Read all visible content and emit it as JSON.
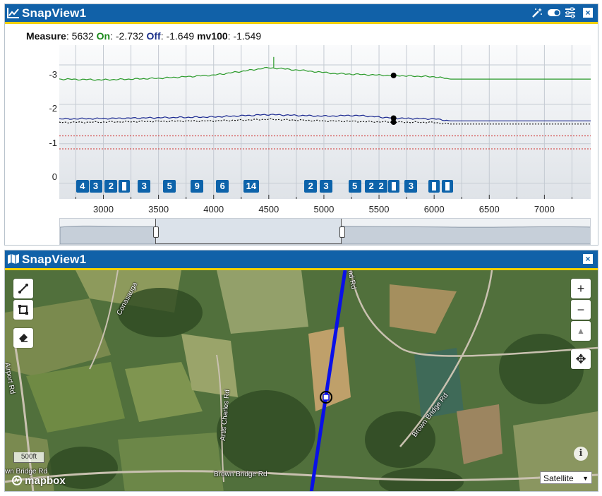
{
  "top_panel": {
    "title": "SnapView1",
    "measure": {
      "measure_label": "Measure",
      "measure_value": "5632",
      "on_label": "On",
      "on_value": "-2.732",
      "off_label": "Off",
      "off_value": "-1.649",
      "mv_label": "mv100",
      "mv_value": "-1.549"
    },
    "icons": [
      "magic-wand-icon",
      "toggle-icon",
      "sliders-icon",
      "close-icon"
    ],
    "close_glyph": "×"
  },
  "chart_data": {
    "type": "line",
    "xlabel": "",
    "ylabel": "",
    "x_ticks": [
      "3000",
      "3500",
      "4000",
      "4500",
      "5000",
      "5500",
      "6000",
      "6500",
      "7000"
    ],
    "y_ticks": [
      "-3",
      "-2",
      "-1",
      "0"
    ],
    "xlim": [
      2600,
      7420
    ],
    "ylim": [
      0.4,
      -3.5
    ],
    "series": [
      {
        "color": "#2a9a2a",
        "x": [
          2600,
          3000,
          3500,
          4000,
          4500,
          4800,
          5100,
          5500,
          5632,
          6000,
          6150,
          7420
        ],
        "values": [
          -2.64,
          -2.62,
          -2.66,
          -2.74,
          -2.93,
          -2.86,
          -2.78,
          -2.74,
          -2.73,
          -2.7,
          -2.64,
          -2.64
        ]
      },
      {
        "color": "#1a2890",
        "x": [
          2600,
          3000,
          3500,
          4000,
          4500,
          5000,
          5300,
          5632,
          6000,
          6150,
          7420
        ],
        "values": [
          -1.63,
          -1.64,
          -1.66,
          -1.68,
          -1.74,
          -1.7,
          -1.72,
          -1.65,
          -1.63,
          -1.58,
          -1.58
        ]
      },
      {
        "color": "#111111",
        "dash": "2,2",
        "x": [
          2600,
          3000,
          3500,
          4000,
          4500,
          5000,
          5632,
          6000,
          6150,
          7420
        ],
        "values": [
          -1.54,
          -1.55,
          -1.57,
          -1.58,
          -1.62,
          -1.58,
          -1.55,
          -1.54,
          -1.5,
          -1.5
        ]
      }
    ],
    "reference_lines": [
      {
        "color": "#d03030",
        "value": -1.2
      },
      {
        "color": "#d03030",
        "value": -0.87
      }
    ],
    "markers": [
      {
        "x": 5632,
        "value": -2.732
      },
      {
        "x": 5632,
        "value": -1.649
      },
      {
        "x": 5632,
        "value": -1.549
      }
    ],
    "badges": [
      {
        "x": 2810,
        "label": "4"
      },
      {
        "x": 2930,
        "label": "3"
      },
      {
        "x": 3070,
        "label": "2"
      },
      {
        "x": 3190,
        "label": ""
      },
      {
        "x": 3370,
        "label": "3"
      },
      {
        "x": 3600,
        "label": "5"
      },
      {
        "x": 3850,
        "label": "9"
      },
      {
        "x": 4080,
        "label": "6"
      },
      {
        "x": 4340,
        "label": "14"
      },
      {
        "x": 4880,
        "label": "2"
      },
      {
        "x": 5020,
        "label": "3"
      },
      {
        "x": 5280,
        "label": "5"
      },
      {
        "x": 5430,
        "label": "2"
      },
      {
        "x": 5520,
        "label": "2"
      },
      {
        "x": 5632,
        "label": ""
      },
      {
        "x": 5790,
        "label": "3"
      },
      {
        "x": 6000,
        "label": ""
      },
      {
        "x": 6120,
        "label": ""
      }
    ],
    "grid": true,
    "navigator": {
      "selected_range": [
        3400,
        5100
      ]
    }
  },
  "bottom_panel": {
    "title": "SnapView1",
    "close_glyph": "×",
    "map": {
      "base_layer": "Satellite",
      "layer_arrow": "▼",
      "scale_label": "500ft",
      "attribution": "mapbox",
      "info_glyph": "i",
      "zoom_in": "+",
      "zoom_out": "−",
      "compass": "▲",
      "pan": "✥",
      "tools": [
        "draw-line-icon",
        "draw-rectangle-icon",
        "eraser-icon"
      ],
      "road_labels": [
        {
          "text": "Airport Rd",
          "id": "airport-rd"
        },
        {
          "text": "Conasauga",
          "id": "conasauga"
        },
        {
          "text": "Artis Charles Rd",
          "id": "artis-charles-rd"
        },
        {
          "text": "Brown Bridge Rd",
          "id": "brown-bridge-rd-east"
        },
        {
          "text": "Brown Bridge Rd",
          "id": "brown-bridge-rd-bottom"
        },
        {
          "text": "wn Bridge Rd",
          "id": "brown-bridge-rd-left"
        },
        {
          "text": "ad Rd",
          "id": "ad-rd"
        }
      ]
    }
  }
}
